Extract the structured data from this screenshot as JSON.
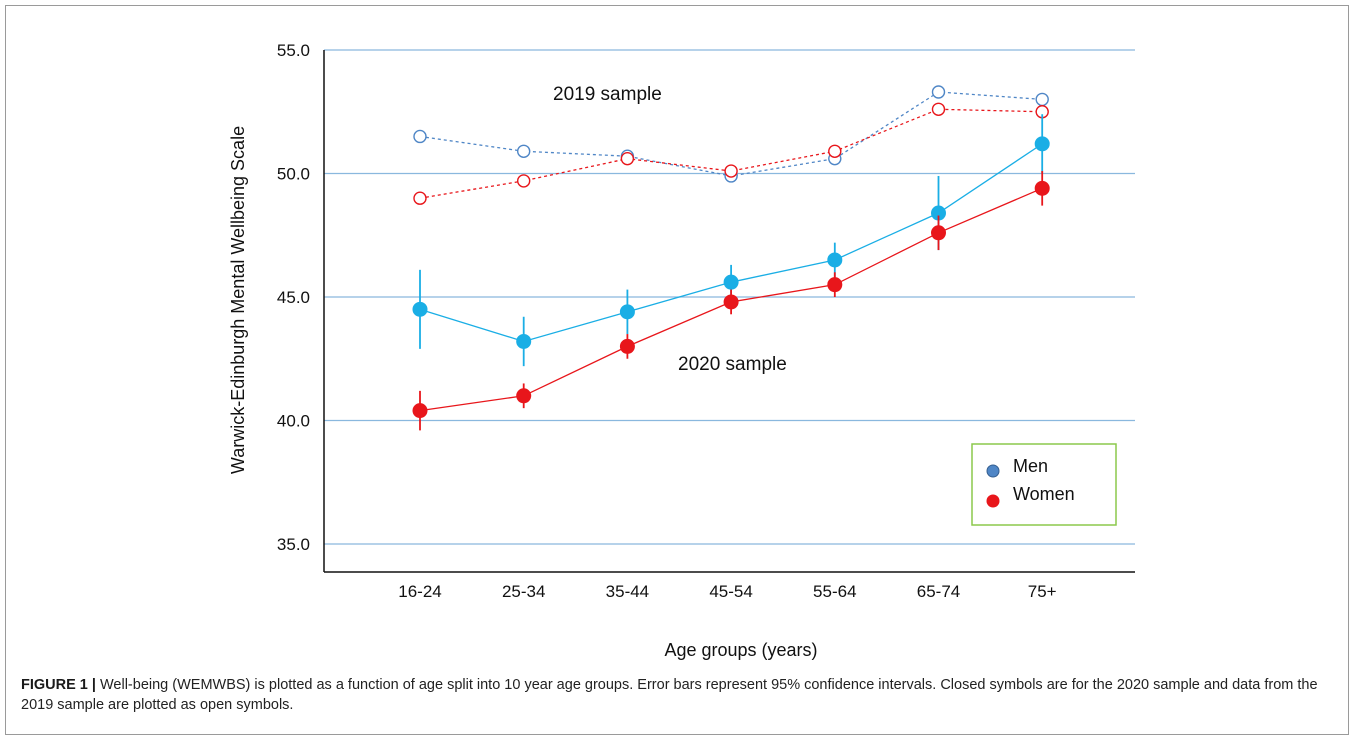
{
  "caption": {
    "label": "FIGURE 1 |",
    "text": "Well-being (WEMWBS) is plotted as a function of age split into 10 year age groups. Error bars represent 95% confidence intervals. Closed symbols are for the 2020 sample and data from the 2019 sample are plotted as open symbols."
  },
  "chart_data": {
    "type": "line",
    "xlabel": "Age groups (years)",
    "ylabel": "Warwick-Edinburgh Mental Wellbeing Scale",
    "categories": [
      "16-24",
      "25-34",
      "35-44",
      "45-54",
      "55-64",
      "65-74",
      "75+"
    ],
    "ylim": [
      35.0,
      55.0
    ],
    "yticks": [
      "35.0",
      "40.0",
      "45.0",
      "50.0",
      "55.0"
    ],
    "ytick_values": [
      35,
      40,
      45,
      50,
      55
    ],
    "grid": "horizontal",
    "legend": {
      "placement": "bottom-right",
      "entries": [
        "Men",
        "Women"
      ]
    },
    "annotations": [
      "2019 sample",
      "2020 sample"
    ],
    "colors": {
      "men_2020": "#1aaee5",
      "women_2020": "#e8161b",
      "men_2019": "#4f86c6",
      "women_2019": "#e8161b",
      "grid": "#8ab8de",
      "legend_border": "#8cc84b"
    },
    "series": [
      {
        "name": "Men",
        "sample": "2020 sample",
        "marker": "filled",
        "values": [
          44.5,
          43.2,
          44.4,
          45.6,
          46.5,
          48.4,
          51.2
        ],
        "ci_low": [
          42.9,
          42.2,
          43.5,
          44.9,
          45.8,
          46.9,
          50.0
        ],
        "ci_high": [
          46.1,
          44.2,
          45.3,
          46.3,
          47.2,
          49.9,
          52.4
        ]
      },
      {
        "name": "Women",
        "sample": "2020 sample",
        "marker": "filled",
        "values": [
          40.4,
          41.0,
          43.0,
          44.8,
          45.5,
          47.6,
          49.4
        ],
        "ci_low": [
          39.6,
          40.5,
          42.5,
          44.3,
          45.0,
          46.9,
          48.7
        ],
        "ci_high": [
          41.2,
          41.5,
          43.5,
          45.3,
          46.0,
          48.3,
          50.1
        ]
      },
      {
        "name": "Men",
        "sample": "2019 sample",
        "marker": "open",
        "values": [
          51.5,
          50.9,
          50.7,
          49.9,
          50.6,
          53.3,
          53.0
        ]
      },
      {
        "name": "Women",
        "sample": "2019 sample",
        "marker": "open",
        "values": [
          49.0,
          49.7,
          50.6,
          50.1,
          50.9,
          52.6,
          52.5
        ]
      }
    ]
  }
}
